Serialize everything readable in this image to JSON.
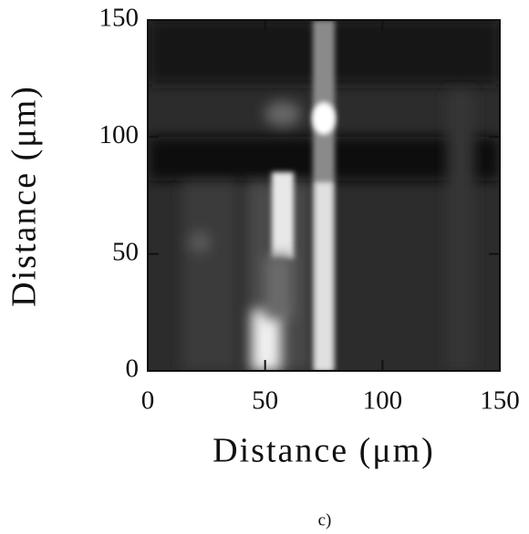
{
  "chart_data": {
    "type": "image",
    "x_label": "Distance (μm)",
    "y_label": "Distance (μm)",
    "caption": "c)",
    "xlim": [
      0,
      150
    ],
    "ylim": [
      0,
      150
    ],
    "xticks": [
      0,
      50,
      100,
      150
    ],
    "yticks": [
      0,
      50,
      100,
      150
    ]
  }
}
